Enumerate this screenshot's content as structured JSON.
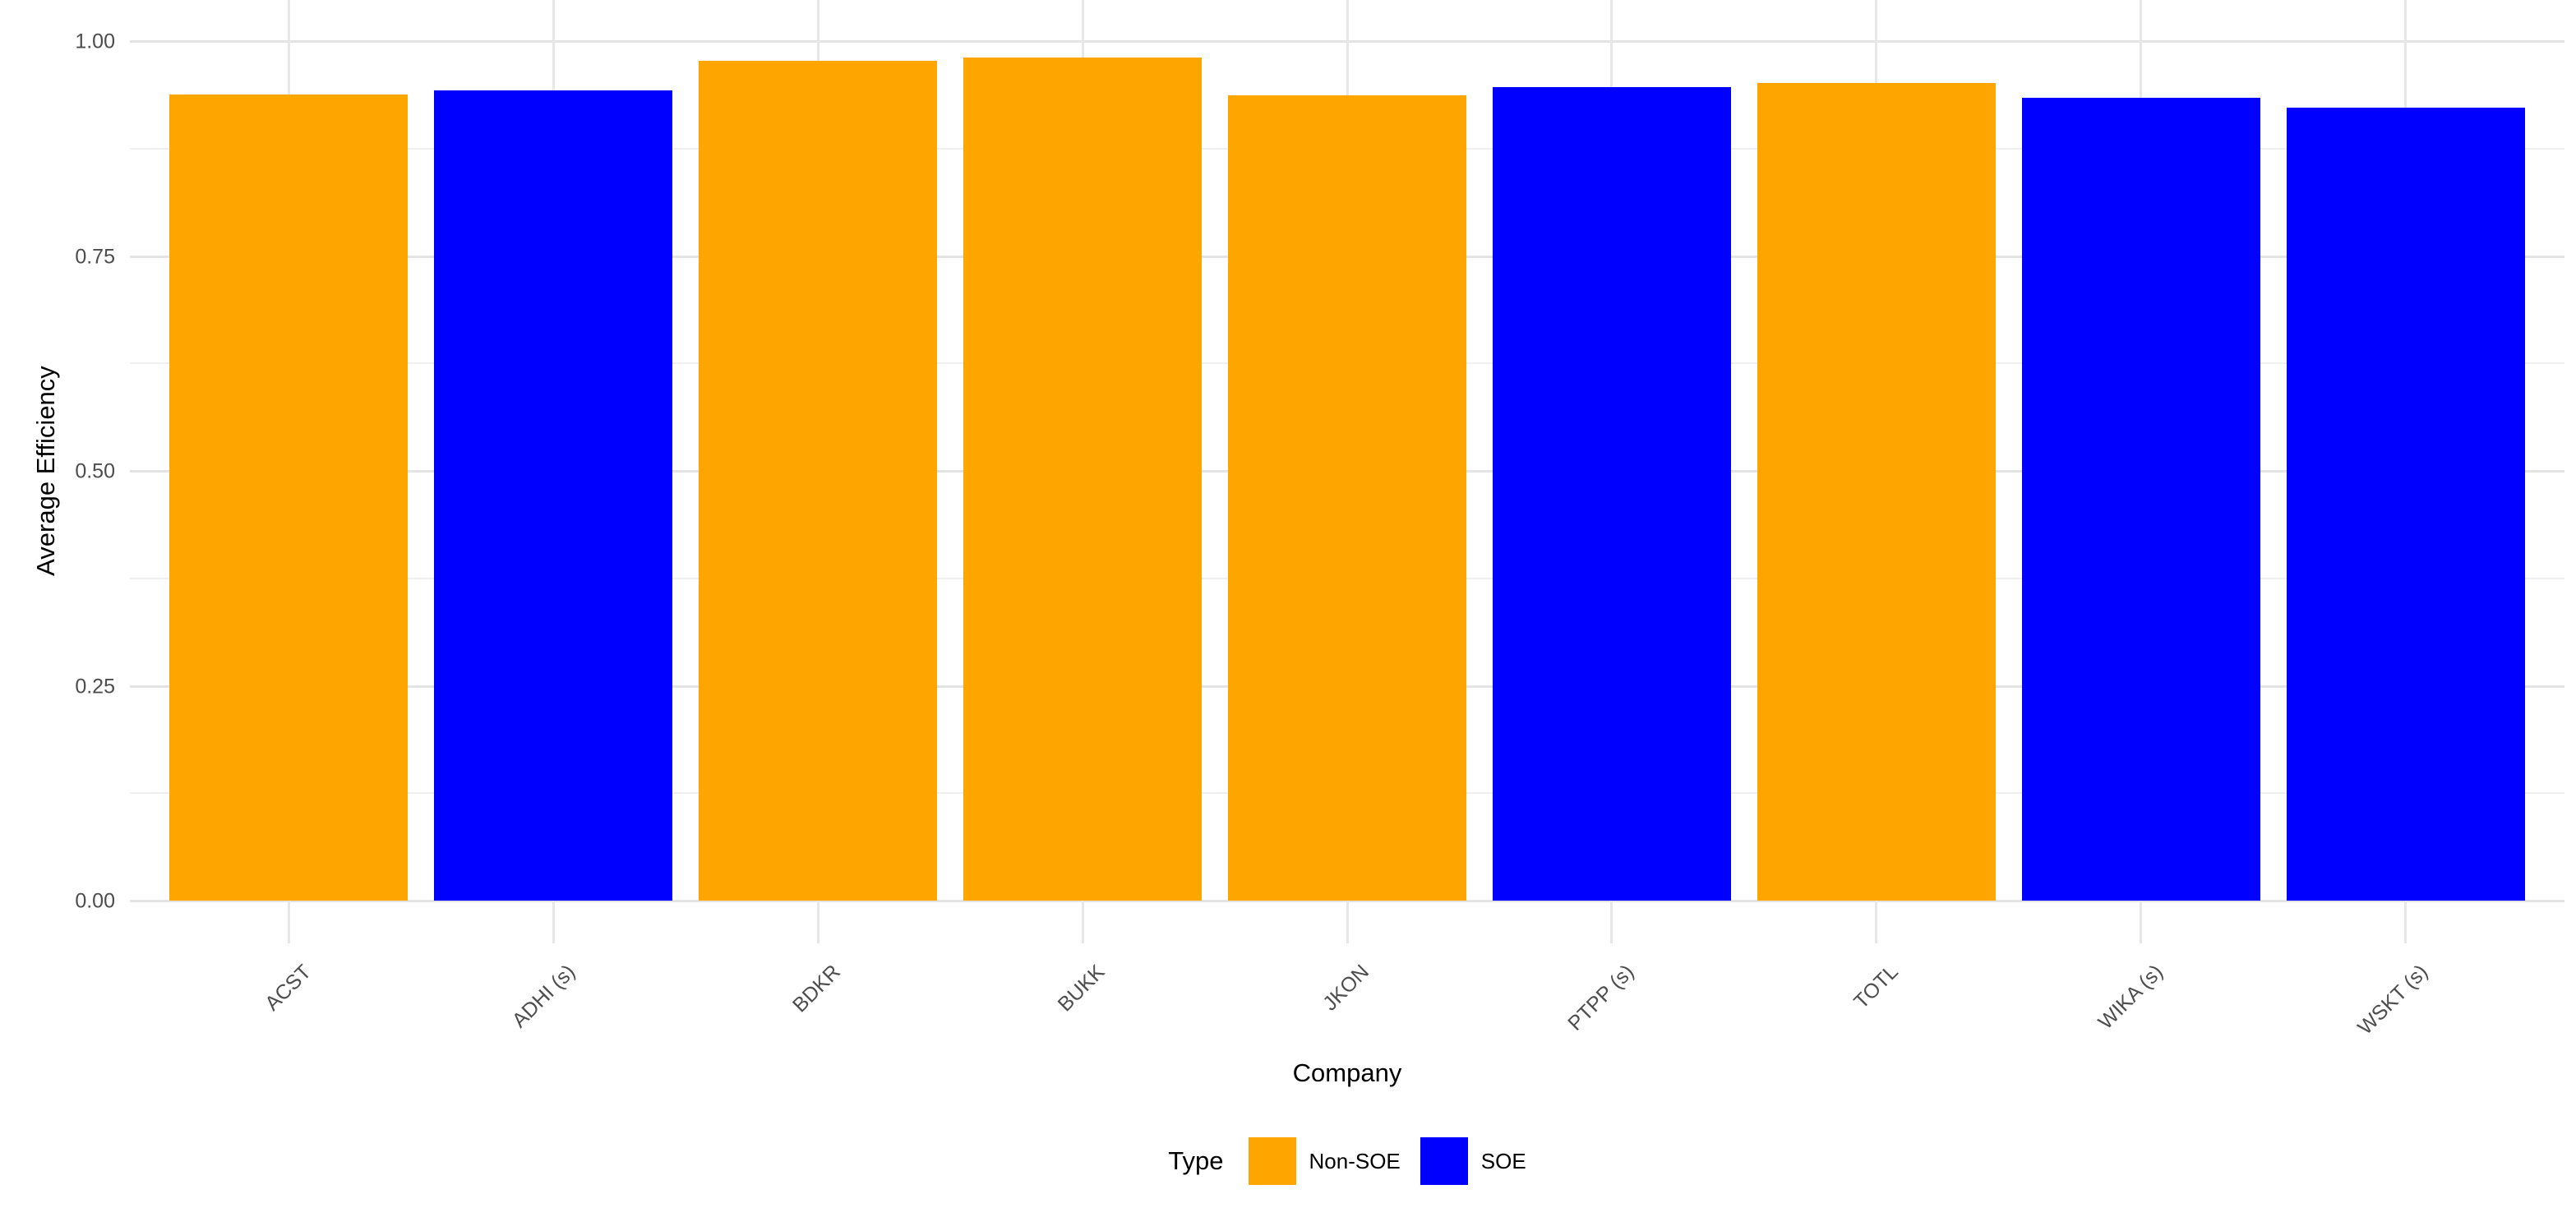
{
  "chart_data": {
    "type": "bar",
    "title": "",
    "xlabel": "Company",
    "ylabel": "Average Efficiency",
    "categories": [
      "ACST",
      "ADHI (s)",
      "BDKR",
      "BUKK",
      "JKON",
      "PTPP (s)",
      "TOTL",
      "WIKA (s)",
      "WSKT (s)"
    ],
    "series": [
      {
        "name": "Average Efficiency",
        "values": [
          0.938,
          0.943,
          0.977,
          0.981,
          0.937,
          0.946,
          0.951,
          0.934,
          0.923
        ],
        "types": [
          "Non-SOE",
          "SOE",
          "Non-SOE",
          "Non-SOE",
          "Non-SOE",
          "SOE",
          "Non-SOE",
          "SOE",
          "SOE"
        ]
      }
    ],
    "ylim": [
      0,
      1
    ],
    "y_ticks": [
      {
        "label": "1.00",
        "value": 1.0
      },
      {
        "label": "0.75",
        "value": 0.75
      },
      {
        "label": "0.50",
        "value": 0.5
      },
      {
        "label": "0.25",
        "value": 0.25
      },
      {
        "label": "0.00",
        "value": 0.0
      }
    ],
    "minor_gridlines": [
      0.125,
      0.375,
      0.625,
      0.875
    ],
    "grid": "on",
    "legend": {
      "title": "Type",
      "position": "bottom",
      "entries": [
        {
          "label": "Non-SOE",
          "color": "#FFA500"
        },
        {
          "label": "SOE",
          "color": "#0000FF"
        }
      ]
    },
    "colors": {
      "non_soe": "#FFA500",
      "soe": "#0000FF",
      "axis_text": "#4d4d4d",
      "grid_major": "#e4e4e4",
      "grid_minor": "#f0f0f0",
      "background": "#ffffff"
    }
  }
}
